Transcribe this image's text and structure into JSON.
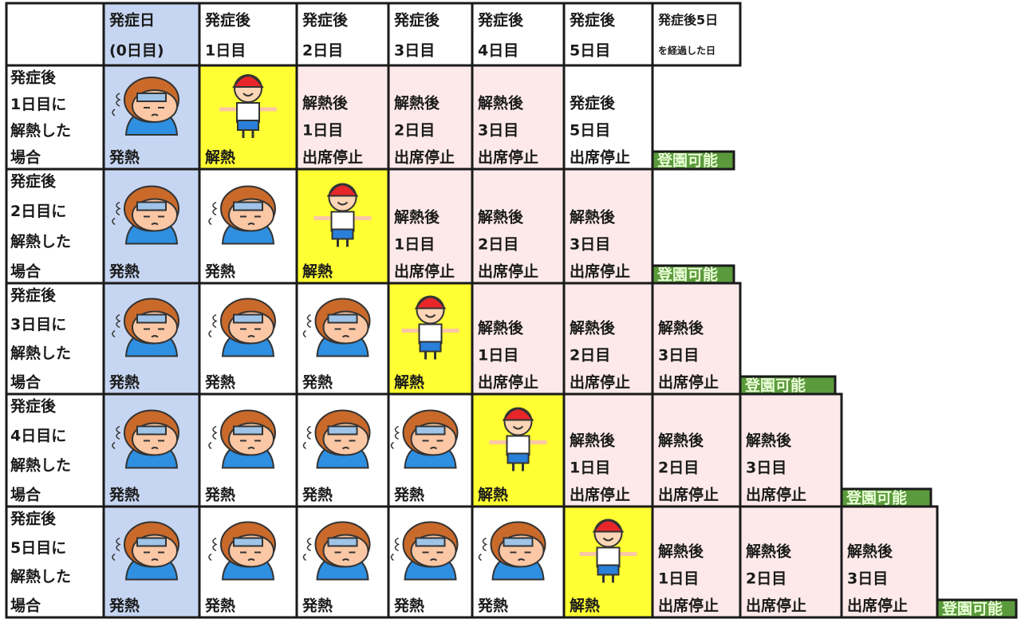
{
  "header": {
    "cells": [
      [],
      [
        "発症日",
        "(0日目)"
      ],
      [
        "発症後",
        "1日目"
      ],
      [
        "発症後",
        "2日目"
      ],
      [
        "発症後",
        "3日目"
      ],
      [
        "発症後",
        "4日目"
      ],
      [
        "発症後",
        "5日目"
      ],
      [
        "発症後5日",
        "を経過した日"
      ]
    ]
  },
  "rows": [
    {
      "label": [
        "発症後",
        "1日目に",
        "解熱した",
        "場合"
      ],
      "cells": [
        {
          "bg": "#c6d6f2",
          "icon": "face",
          "lines": [
            "発熱"
          ]
        },
        {
          "bg": "#ffff33",
          "icon": "kid",
          "lines": [
            "解熱"
          ]
        },
        {
          "bg": "#fde9e9",
          "lines": [
            "解熱後",
            "1日目",
            "出席停止"
          ]
        },
        {
          "bg": "#fde9e9",
          "lines": [
            "解熱後",
            "2日目",
            "出席停止"
          ]
        },
        {
          "bg": "#fde9e9",
          "lines": [
            "解熱後",
            "3日目",
            "出席停止"
          ]
        },
        {
          "bg": "#ffffff",
          "lines": [
            "発症後",
            "5日目",
            "出席停止"
          ]
        },
        {
          "bg": "#5b9a3c",
          "style": "tag",
          "lines": [
            "登園可能"
          ]
        }
      ]
    },
    {
      "label": [
        "発症後",
        "2日目に",
        "解熱した",
        "場合"
      ],
      "cells": [
        {
          "bg": "#c6d6f2",
          "icon": "face",
          "lines": [
            "発熱"
          ]
        },
        {
          "bg": "#ffffff",
          "icon": "face",
          "lines": [
            "発熱"
          ]
        },
        {
          "bg": "#ffff33",
          "icon": "kid",
          "lines": [
            "解熱"
          ]
        },
        {
          "bg": "#fde9e9",
          "lines": [
            "解熱後",
            "1日目",
            "出席停止"
          ]
        },
        {
          "bg": "#fde9e9",
          "lines": [
            "解熱後",
            "2日目",
            "出席停止"
          ]
        },
        {
          "bg": "#fde9e9",
          "lines": [
            "解熱後",
            "3日目",
            "出席停止"
          ]
        },
        {
          "bg": "#5b9a3c",
          "style": "tag",
          "lines": [
            "登園可能"
          ]
        }
      ]
    },
    {
      "label": [
        "発症後",
        "3日目に",
        "解熱した",
        "場合"
      ],
      "cells": [
        {
          "bg": "#c6d6f2",
          "icon": "face",
          "lines": [
            "発熱"
          ]
        },
        {
          "bg": "#ffffff",
          "icon": "face",
          "lines": [
            "発熱"
          ]
        },
        {
          "bg": "#ffffff",
          "icon": "face",
          "lines": [
            "発熱"
          ]
        },
        {
          "bg": "#ffff33",
          "icon": "kid",
          "lines": [
            "解熱"
          ]
        },
        {
          "bg": "#fde9e9",
          "lines": [
            "解熱後",
            "1日目",
            "出席停止"
          ]
        },
        {
          "bg": "#fde9e9",
          "lines": [
            "解熱後",
            "2日目",
            "出席停止"
          ]
        },
        {
          "bg": "#fde9e9",
          "lines": [
            "解熱後",
            "3日目",
            "出席停止"
          ]
        },
        {
          "bg": "#5b9a3c",
          "style": "tag",
          "lines": [
            "登園可能"
          ]
        }
      ]
    },
    {
      "label": [
        "発症後",
        "4日目に",
        "解熱した",
        "場合"
      ],
      "cells": [
        {
          "bg": "#c6d6f2",
          "icon": "face",
          "lines": [
            "発熱"
          ]
        },
        {
          "bg": "#ffffff",
          "icon": "face",
          "lines": [
            "発熱"
          ]
        },
        {
          "bg": "#ffffff",
          "icon": "face",
          "lines": [
            "発熱"
          ]
        },
        {
          "bg": "#ffffff",
          "icon": "face",
          "lines": [
            "発熱"
          ]
        },
        {
          "bg": "#ffff33",
          "icon": "kid",
          "lines": [
            "解熱"
          ]
        },
        {
          "bg": "#fde9e9",
          "lines": [
            "解熱後",
            "1日目",
            "出席停止"
          ]
        },
        {
          "bg": "#fde9e9",
          "lines": [
            "解熱後",
            "2日目",
            "出席停止"
          ]
        },
        {
          "bg": "#fde9e9",
          "lines": [
            "解熱後",
            "3日目",
            "出席停止"
          ]
        },
        {
          "bg": "#5b9a3c",
          "style": "tag",
          "lines": [
            "登園可能"
          ]
        }
      ]
    },
    {
      "label": [
        "発症後",
        "5日目に",
        "解熱した",
        "場合"
      ],
      "cells": [
        {
          "bg": "#c6d6f2",
          "icon": "face",
          "lines": [
            "発熱"
          ]
        },
        {
          "bg": "#ffffff",
          "icon": "face",
          "lines": [
            "発熱"
          ]
        },
        {
          "bg": "#ffffff",
          "icon": "face",
          "lines": [
            "発熱"
          ]
        },
        {
          "bg": "#ffffff",
          "icon": "face",
          "lines": [
            "発熱"
          ]
        },
        {
          "bg": "#ffffff",
          "icon": "face",
          "lines": [
            "発熱"
          ]
        },
        {
          "bg": "#ffff33",
          "icon": "kid",
          "lines": [
            "解熱"
          ]
        },
        {
          "bg": "#fde9e9",
          "lines": [
            "解熱後",
            "1日目",
            "出席停止"
          ]
        },
        {
          "bg": "#fde9e9",
          "lines": [
            "解熱後",
            "2日目",
            "出席停止"
          ]
        },
        {
          "bg": "#fde9e9",
          "lines": [
            "解熱後",
            "3日目",
            "出席停止"
          ]
        },
        {
          "bg": "#5b9a3c",
          "style": "tag",
          "lines": [
            "登園可能"
          ]
        }
      ]
    }
  ]
}
